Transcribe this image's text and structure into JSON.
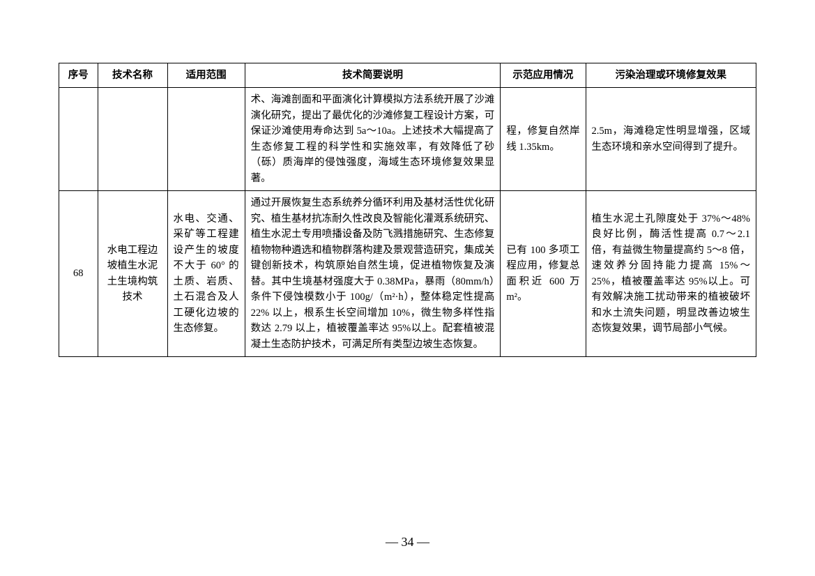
{
  "table": {
    "headers": {
      "seq": "序号",
      "name": "技术名称",
      "scope": "适用范围",
      "desc": "技术简要说明",
      "demo": "示范应用情况",
      "effect": "污染治理或环境修复效果"
    },
    "rows": [
      {
        "seq": "",
        "name": "",
        "scope": "",
        "desc": "术、海滩剖面和平面演化计算模拟方法系统开展了沙滩演化研究，提出了最优化的沙滩修复工程设计方案，可保证沙滩使用寿命达到 5a～10a。上述技术大幅提高了生态修复工程的科学性和实施效率，有效降低了砂（砾）质海岸的侵蚀强度，海域生态环境修复效果显著。",
        "demo": "程，修复自然岸线 1.35km。",
        "effect": "2.5m，海滩稳定性明显增强，区域生态环境和亲水空间得到了提升。"
      },
      {
        "seq": "68",
        "name": "水电工程边坡植生水泥土生境构筑技术",
        "scope": "水电、交通、采矿等工程建设产生的坡度不大于 60° 的土质、岩质、土石混合及人工硬化边坡的生态修复。",
        "desc": "通过开展恢复生态系统养分循环利用及基材活性优化研究、植生基材抗冻耐久性改良及智能化灌溉系统研究、植生水泥土专用喷播设备及防飞溅措施研究、生态修复植物物种遴选和植物群落构建及景观营造研究，集成关键创新技术，构筑原始自然生境，促进植物恢复及演替。其中生境基材强度大于 0.38MPa，暴雨（80mm/h）条件下侵蚀模数小于 100g/（m²·h），整体稳定性提高 22% 以上，根系生长空间增加 10%，微生物多样性指数达 2.79 以上，植被覆盖率达 95%以上。配套植被混凝土生态防护技术，可满足所有类型边坡生态恢复。",
        "demo": "已有 100 多项工程应用，修复总面积近 600 万 m²。",
        "effect": "植生水泥土孔隙度处于 37%～48% 良好比例，酶活性提高 0.7～2.1 倍，有益微生物量提高约 5～8 倍，速效养分固持能力提高 15%～25%，植被覆盖率达 95%以上。可有效解决施工扰动带来的植被破坏和水土流失问题，明显改善边坡生态恢复效果，调节局部小气候。"
      }
    ]
  },
  "page_number": "— 34 —"
}
